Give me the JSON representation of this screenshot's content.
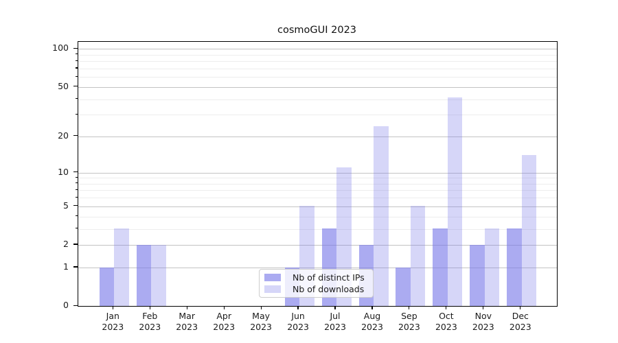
{
  "chart_data": {
    "type": "bar",
    "title": "cosmoGUI 2023",
    "categories": [
      "Jan 2023",
      "Feb 2023",
      "Mar 2023",
      "Apr 2023",
      "May 2023",
      "Jun 2023",
      "Jul 2023",
      "Aug 2023",
      "Sep 2023",
      "Oct 2023",
      "Nov 2023",
      "Dec 2023"
    ],
    "x_tick_line1": [
      "Jan",
      "Feb",
      "Mar",
      "Apr",
      "May",
      "Jun",
      "Jul",
      "Aug",
      "Sep",
      "Oct",
      "Nov",
      "Dec"
    ],
    "x_tick_line2": [
      "2023",
      "2023",
      "2023",
      "2023",
      "2023",
      "2023",
      "2023",
      "2023",
      "2023",
      "2023",
      "2023",
      "2023"
    ],
    "series": [
      {
        "name": "Nb of distinct IPs",
        "key": "distinct-ips",
        "values": [
          1,
          2,
          0,
          0,
          0,
          1,
          3,
          2,
          1,
          3,
          2,
          3
        ]
      },
      {
        "name": "Nb of downloads",
        "key": "downloads",
        "values": [
          3,
          2,
          0,
          0,
          0,
          5,
          11,
          24,
          5,
          41,
          3,
          14
        ]
      }
    ],
    "xlabel": "",
    "ylabel": "",
    "y_scale": "log1p",
    "y_major_ticks": [
      0,
      1,
      2,
      5,
      10,
      20,
      50,
      100
    ],
    "y_tick_labels": [
      "0",
      "1",
      "2",
      "5",
      "10",
      "20",
      "50",
      "100"
    ],
    "y_minor_gridlines": [
      3,
      4,
      6,
      7,
      8,
      9,
      30,
      40,
      60,
      70,
      80,
      90
    ],
    "ylim": [
      0,
      114
    ],
    "grid": true,
    "legend": {
      "position": "inside-lower-center",
      "entries": [
        "Nb of distinct IPs",
        "Nb of downloads"
      ]
    },
    "colors": {
      "bar_base": "#7878e8",
      "bar_ips_rendered": "#a9a9ef",
      "bar_downloads_rendered": "#d7d7f8",
      "grid_major": "#c3c3c3",
      "grid_minor": "#ededed",
      "spine": "#000000",
      "text": "#1a1a1a"
    }
  }
}
